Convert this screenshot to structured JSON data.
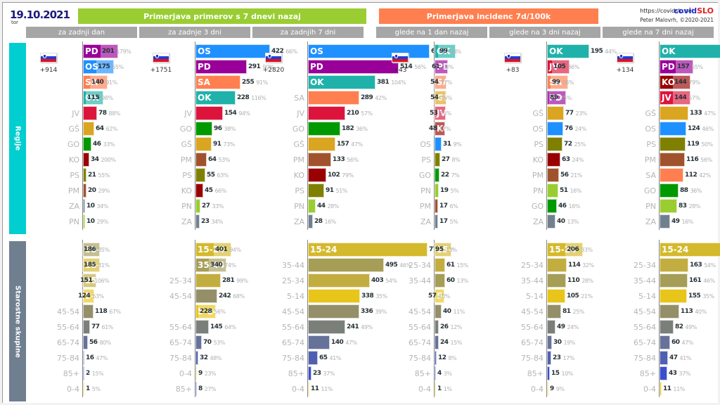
{
  "header": {
    "date": "19.10.2021",
    "day_of_week": "tor",
    "left_title": "Primerjava primerov s 7 dnevi nazaj",
    "right_title": "Primerjava incidenc 7d/100k",
    "url": "https://covidslo.net",
    "brand_a": "covid",
    "brand_b": "SLO",
    "author": "Peter Malovrh, ©2020-2021",
    "subheaders": [
      "za zadnji dan",
      "za zadnje 3 dni",
      "za zadnjih 7 dni",
      "glede na 1 dan nazaj",
      "glede na 3 dni nazaj",
      "glede na 7 dni nazaj"
    ]
  },
  "sections": {
    "regions": "Regije",
    "ages": "Starostne skupine"
  },
  "colors": {
    "PD": "#990099",
    "OS": "#1e90ff",
    "SA": "#ff7f50",
    "OK": "#20b2aa",
    "JV": "#dc143c",
    "GŠ": "#daa520",
    "GO": "#009900",
    "KO": "#990000",
    "PS": "#808000",
    "PM": "#a0522d",
    "ZA": "#708090",
    "PN": "#9acd32",
    "35-44": "#a69d56",
    "15-24": "#d4b92c",
    "25-34": "#c2ad40",
    "5-14": "#e8c51a",
    "45-54": "#948f68",
    "55-64": "#7b7f7a",
    "65-74": "#66729a",
    "75-84": "#5060b0",
    "85+": "#3a4fcc",
    "0-4": "#e8c51a"
  },
  "chart_data": [
    {
      "type": "bar",
      "title": "za zadnji dan",
      "group": "regions",
      "total_label": "+914",
      "categories": [
        "PD",
        "OS",
        "SA",
        "OK",
        "JV",
        "GŠ",
        "GO",
        "KO",
        "PS",
        "PM",
        "ZA",
        "PN"
      ],
      "values": [
        201,
        175,
        140,
        115,
        78,
        64,
        46,
        34,
        21,
        20,
        10,
        10
      ],
      "pct": [
        "179%",
        "55%",
        "91%",
        "98%",
        "88%",
        "62%",
        "33%",
        "200%",
        "55%",
        "29%",
        "34%",
        "29%"
      ],
      "inside_label_count": 4,
      "xmax": 689
    },
    {
      "type": "bar",
      "title": "za zadnje 3 dni",
      "group": "regions",
      "total_label": "+1751",
      "categories": [
        "OS",
        "PD",
        "SA",
        "OK",
        "JV",
        "GO",
        "GŠ",
        "PM",
        "PS",
        "KO",
        "PN",
        "ZA"
      ],
      "values": [
        422,
        291,
        255,
        228,
        154,
        96,
        91,
        64,
        55,
        45,
        27,
        23
      ],
      "pct": [
        "66%",
        "90%",
        "91%",
        "116%",
        "94%",
        "38%",
        "73%",
        "53%",
        "63%",
        "66%",
        "33%",
        "34%"
      ],
      "inside_label_count": 4,
      "xmax": 689
    },
    {
      "type": "bar",
      "title": "za zadnjih 7 dni",
      "group": "regions",
      "total_label": "+2820",
      "categories": [
        "OS",
        "PD",
        "OK",
        "SA",
        "JV",
        "GO",
        "GŠ",
        "PM",
        "KO",
        "PS",
        "PN",
        "ZA"
      ],
      "values": [
        689,
        514,
        381,
        289,
        210,
        182,
        157,
        133,
        102,
        91,
        44,
        28
      ],
      "pct": [
        "46%",
        "56%",
        "104%",
        "42%",
        "57%",
        "36%",
        "47%",
        "56%",
        "79%",
        "51%",
        "28%",
        "16%"
      ],
      "inside_label_count": 3,
      "xmax": 689
    },
    {
      "type": "bar",
      "title": "glede na 1 dan nazaj",
      "group": "regions",
      "total_label": "+43",
      "categories": [
        "OK",
        "PD",
        "SA",
        "GŠ",
        "JV",
        "KO",
        "OS",
        "PS",
        "GO",
        "PN",
        "PM",
        "ZA"
      ],
      "values": [
        99,
        61,
        54,
        54,
        53,
        48,
        31,
        27,
        22,
        19,
        17,
        17
      ],
      "pct": [
        "18%",
        "16%",
        "17%",
        "15%",
        "15%",
        "17%",
        "9%",
        "8%",
        "7%",
        "5%",
        "6%",
        "5%"
      ],
      "inside_label_count": 6,
      "xmax": 326
    },
    {
      "type": "bar",
      "title": "glede na 3 dni nazaj",
      "group": "regions",
      "total_label": "+83",
      "categories": [
        "OK",
        "JV",
        "SA",
        "PD",
        "GŠ",
        "OS",
        "PS",
        "KO",
        "PM",
        "PN",
        "GO",
        "ZA"
      ],
      "values": [
        195,
        105,
        99,
        89,
        77,
        76,
        72,
        63,
        56,
        51,
        46,
        40
      ],
      "pct": [
        "44%",
        "36%",
        "36%",
        "25%",
        "23%",
        "24%",
        "25%",
        "24%",
        "21%",
        "16%",
        "16%",
        "13%"
      ],
      "inside_label_count": 4,
      "xmax": 326
    },
    {
      "type": "bar",
      "title": "glede na 7 dni nazaj",
      "group": "regions",
      "total_label": "+134",
      "categories": [
        "OK",
        "PD",
        "KO",
        "JV",
        "GŠ",
        "OS",
        "PS",
        "PM",
        "SA",
        "GO",
        "PN",
        "ZA"
      ],
      "values": [
        326,
        157,
        144,
        144,
        133,
        124,
        119,
        116,
        112,
        88,
        83,
        49
      ],
      "pct": [
        "103%",
        "55%",
        "79%",
        "57%",
        "47%",
        "46%",
        "50%",
        "56%",
        "42%",
        "36%",
        "28%",
        "16%"
      ],
      "inside_label_count": 4,
      "xmax": 326
    },
    {
      "type": "bar",
      "title": "za zadnji dan",
      "group": "ages",
      "categories": [
        "35-44",
        "15-24",
        "25-34",
        "5-14",
        "45-54",
        "55-64",
        "65-74",
        "75-84",
        "85+",
        "0-4"
      ],
      "values": [
        186,
        185,
        151,
        124,
        118,
        77,
        56,
        16,
        2,
        1
      ],
      "pct": [
        "85%",
        "81%",
        "106%",
        "63%",
        "67%",
        "61%",
        "80%",
        "47%",
        "15%",
        "5%"
      ],
      "inside": [
        true,
        true,
        true,
        true,
        false,
        false,
        false,
        false,
        false,
        false
      ],
      "xmax": 779
    },
    {
      "type": "bar",
      "title": "za zadnje 3 dni",
      "group": "ages",
      "categories": [
        "15-24",
        "35-44",
        "25-34",
        "45-54",
        "5-14",
        "55-64",
        "65-74",
        "75-84",
        "0-4",
        "85+"
      ],
      "values": [
        401,
        340,
        281,
        242,
        228,
        145,
        70,
        32,
        9,
        8
      ],
      "pct": [
        "94%",
        "74%",
        "99%",
        "68%",
        "56%",
        "64%",
        "53%",
        "48%",
        "23%",
        "27%"
      ],
      "inside": [
        true,
        true,
        false,
        false,
        true,
        false,
        false,
        false,
        false,
        false
      ],
      "xmax": 779
    },
    {
      "type": "bar",
      "title": "za zadnjih 7 dni",
      "group": "ages",
      "categories": [
        "15-24",
        "35-44",
        "25-34",
        "5-14",
        "45-54",
        "55-64",
        "65-74",
        "75-84",
        "85+",
        "0-4"
      ],
      "values": [
        779,
        495,
        403,
        338,
        336,
        241,
        140,
        65,
        23,
        11
      ],
      "pct": [
        "93%",
        "46%",
        "54%",
        "35%",
        "39%",
        "49%",
        "47%",
        "41%",
        "37%",
        "11%"
      ],
      "inside": [
        true,
        false,
        false,
        false,
        false,
        false,
        false,
        false,
        false,
        false
      ],
      "xmax": 779
    },
    {
      "type": "bar",
      "title": "glede na 1 dan nazaj",
      "group": "ages",
      "categories": [
        "15-24",
        "25-34",
        "35-44",
        "5-14",
        "45-54",
        "55-64",
        "65-74",
        "75-84",
        "85+",
        "0-4"
      ],
      "values": [
        95,
        61,
        60,
        57,
        40,
        26,
        24,
        12,
        4,
        1
      ],
      "pct": [
        "13%",
        "15%",
        "13%",
        "10%",
        "11%",
        "12%",
        "15%",
        "8%",
        "3%",
        "1%"
      ],
      "inside": [
        true,
        false,
        false,
        true,
        false,
        false,
        false,
        false,
        false,
        false
      ],
      "xmax": 401
    },
    {
      "type": "bar",
      "title": "glede na 3 dni nazaj",
      "group": "ages",
      "categories": [
        "15-24",
        "25-34",
        "35-44",
        "5-14",
        "45-54",
        "55-64",
        "65-74",
        "75-84",
        "85+",
        "0-4"
      ],
      "values": [
        206,
        114,
        110,
        105,
        81,
        49,
        30,
        23,
        15,
        9
      ],
      "pct": [
        "33%",
        "32%",
        "28%",
        "21%",
        "25%",
        "24%",
        "19%",
        "17%",
        "10%",
        "9%"
      ],
      "inside": [
        true,
        false,
        false,
        false,
        false,
        false,
        false,
        false,
        false,
        false
      ],
      "xmax": 401
    },
    {
      "type": "bar",
      "title": "glede na 7 dni nazaj",
      "group": "ages",
      "categories": [
        "15-24",
        "25-34",
        "35-44",
        "5-14",
        "45-54",
        "55-64",
        "65-74",
        "75-84",
        "85+",
        "0-4"
      ],
      "values": [
        401,
        163,
        161,
        155,
        113,
        82,
        60,
        47,
        43,
        11
      ],
      "pct": [
        "93%",
        "54%",
        "46%",
        "35%",
        "40%",
        "49%",
        "47%",
        "41%",
        "37%",
        "11%"
      ],
      "inside": [
        true,
        false,
        false,
        false,
        false,
        false,
        false,
        false,
        false,
        false
      ],
      "xmax": 401
    }
  ]
}
